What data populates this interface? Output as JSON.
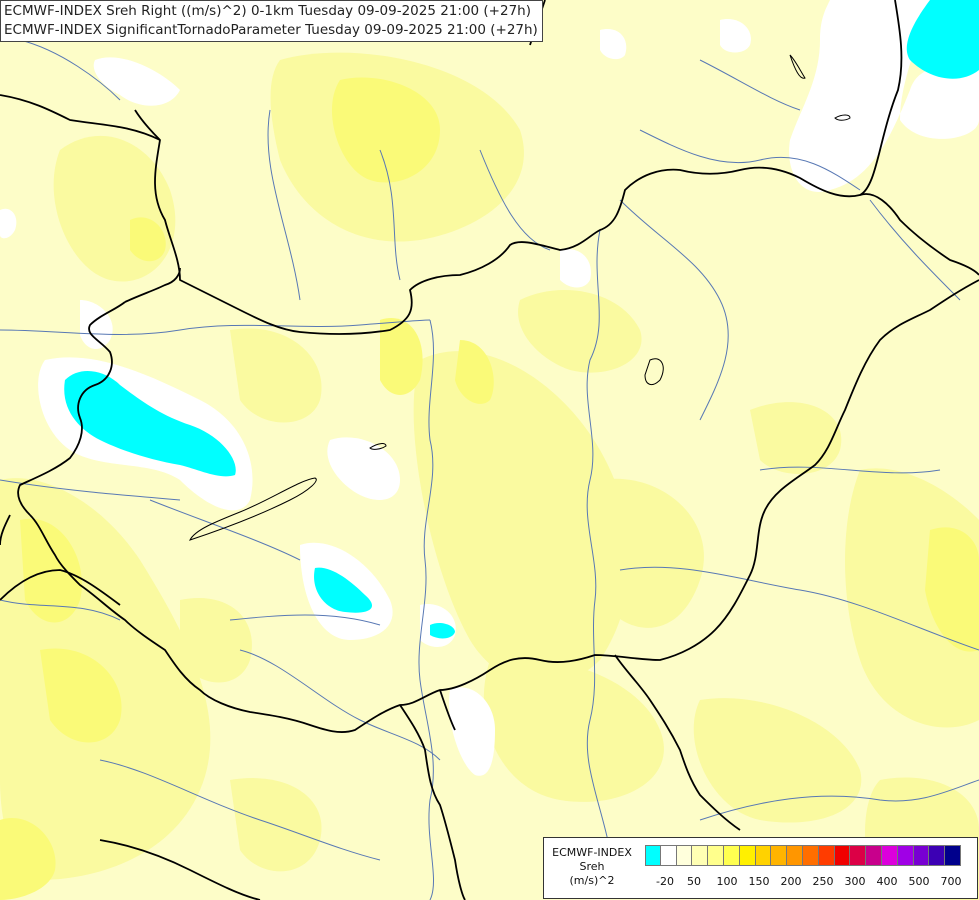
{
  "titles": [
    "ECMWF-INDEX Sreh Right ((m/s)^2) 0-1km Tuesday 09-09-2025 21:00 (+27h)",
    "ECMWF-INDEX SignificantTornadoParameter Tuesday 09-09-2025 21:00 (+27h)"
  ],
  "legend": {
    "line1": "ECMWF-INDEX",
    "line2": "Sreh",
    "line3": "(m/s)^2",
    "colors": [
      "#00ffff",
      "#ffffff",
      "#ffffdc",
      "#ffffb4",
      "#ffff8c",
      "#ffff50",
      "#fff000",
      "#ffd200",
      "#ffb400",
      "#ff9600",
      "#ff6e00",
      "#ff3c00",
      "#f00000",
      "#dc0046",
      "#c8008c",
      "#dc00dc",
      "#a000e6",
      "#7800d2",
      "#3c00b4",
      "#00008c"
    ],
    "ticks": [
      "-20",
      "50",
      "100",
      "150",
      "200",
      "250",
      "300",
      "400",
      "500",
      "700"
    ]
  },
  "colors": {
    "base": "#fdfdc8",
    "yellow_light": "#fafaa0",
    "yellow_mid": "#fafa78",
    "white": "#ffffff",
    "cyan": "#00ffff",
    "border": "#000000",
    "river": "#5878b4"
  }
}
